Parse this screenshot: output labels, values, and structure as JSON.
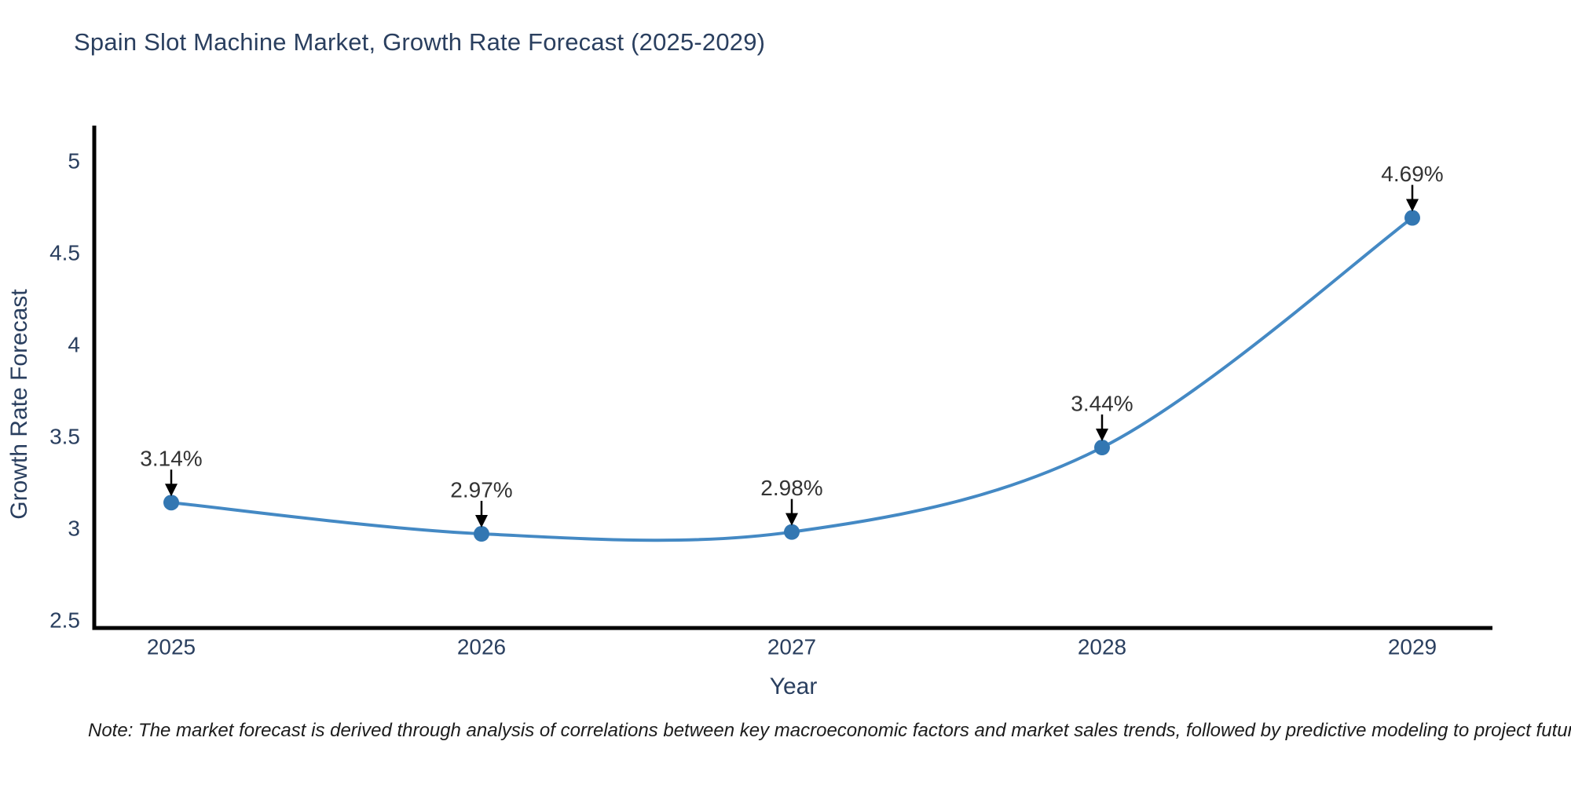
{
  "header": {
    "title": "Spain Slot Machine Market, Growth Rate Forecast (2025-2029)"
  },
  "footnote": "Note: The market forecast is derived through analysis of correlations between key macroeconomic factors and market sales trends, followed by predictive modeling to project future sales",
  "chart_data": {
    "type": "line",
    "title": "Spain Slot Machine Market, Growth Rate Forecast (2025-2029)",
    "xlabel": "Year",
    "ylabel": "Growth Rate Forecast",
    "categories": [
      2025,
      2026,
      2027,
      2028,
      2029
    ],
    "values": [
      3.14,
      2.97,
      2.98,
      3.44,
      4.69
    ],
    "point_labels": [
      "3.14%",
      "2.97%",
      "2.98%",
      "3.44%",
      "4.69%"
    ],
    "yticks": [
      2.5,
      3,
      3.5,
      4,
      4.5,
      5
    ],
    "ylim": [
      2.46,
      5.19
    ],
    "line_shape": "spline",
    "grid": false,
    "legend": "none",
    "colors": {
      "line": "#4489c4",
      "marker": "#3377b2",
      "annotation_text": "#333333",
      "arrow": "#000000",
      "axis": "#000000",
      "text": "#2a3f5f"
    }
  }
}
